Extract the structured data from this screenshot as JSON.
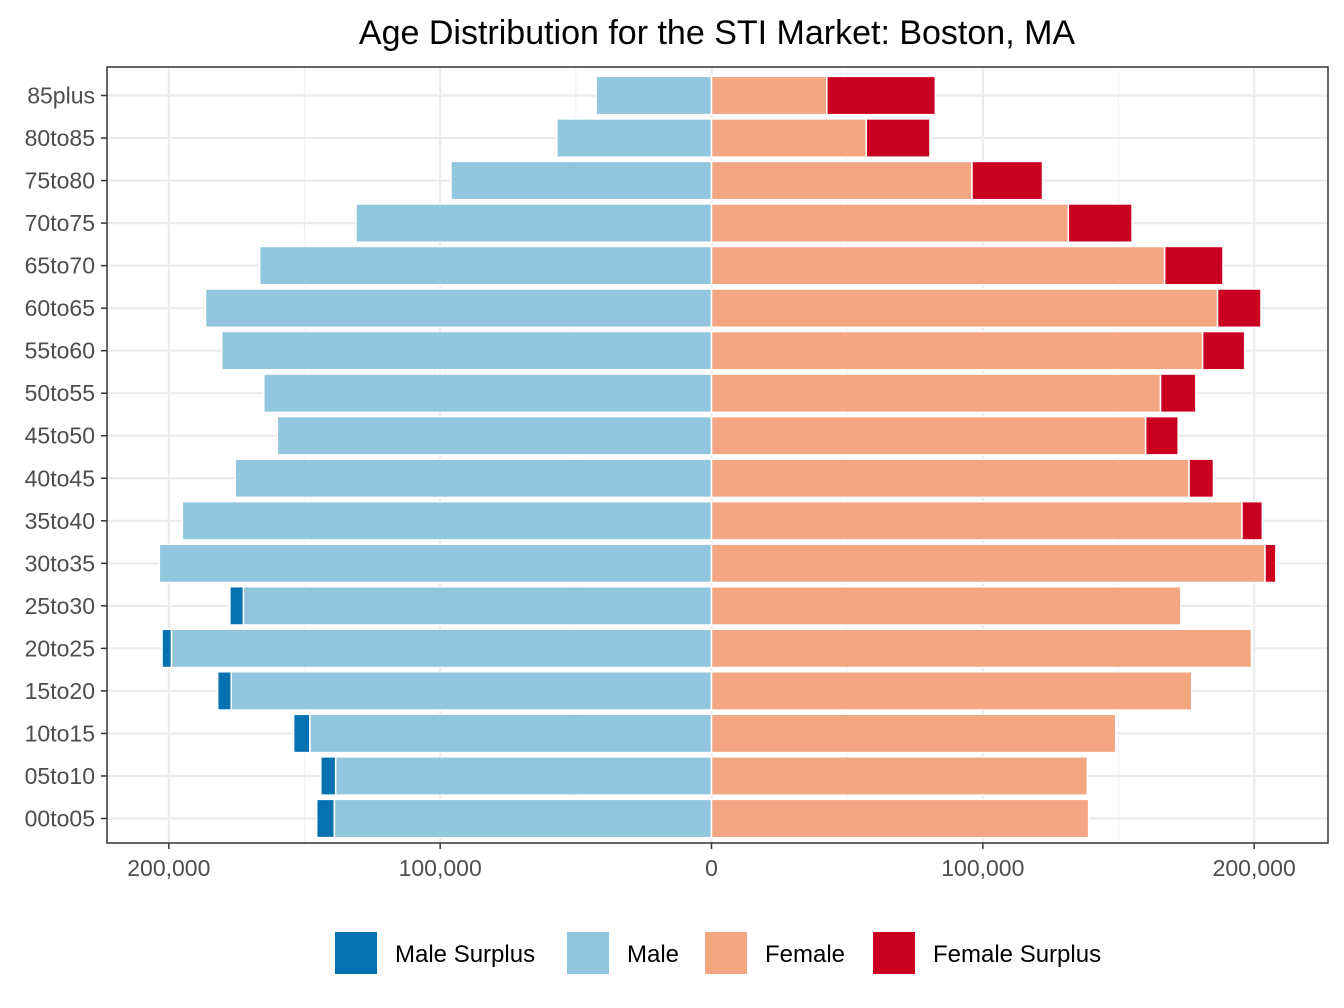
{
  "chart_data": {
    "type": "bar",
    "orientation": "horizontal",
    "layout": "population-pyramid",
    "title": "Age Distribution for the STI Market: Boston, MA",
    "xlabel": "",
    "ylabel": "",
    "xlim": [
      -225000,
      225000
    ],
    "x_ticks": [
      -200000,
      -100000,
      0,
      100000,
      200000
    ],
    "x_tick_labels": [
      "200,000",
      "100,000",
      "0",
      "100,000",
      "200,000"
    ],
    "grid": true,
    "legend_position": "bottom",
    "categories": [
      "00to05",
      "05to10",
      "10to15",
      "15to20",
      "20to25",
      "25to30",
      "30to35",
      "35to40",
      "40to45",
      "45to50",
      "50to55",
      "55to60",
      "60to65",
      "65to70",
      "70to75",
      "75to80",
      "80to85",
      "85plus"
    ],
    "series": [
      {
        "name": "Male Surplus",
        "color": "#0571b0",
        "side": "left",
        "stacked_after": "Male",
        "values": [
          6500,
          5500,
          6000,
          5000,
          3500,
          5000,
          0,
          0,
          0,
          0,
          0,
          0,
          0,
          0,
          0,
          0,
          0,
          0
        ]
      },
      {
        "name": "Male",
        "color": "#92c5de",
        "side": "left",
        "values": [
          139000,
          138500,
          148000,
          177000,
          199000,
          172500,
          203500,
          195000,
          175500,
          160000,
          165000,
          180500,
          186500,
          166500,
          131000,
          96000,
          57000,
          42500
        ]
      },
      {
        "name": "Female",
        "color": "#f4a582",
        "side": "right",
        "values": [
          139000,
          138500,
          149000,
          177000,
          199000,
          173000,
          204000,
          195500,
          176000,
          160000,
          165500,
          181000,
          186500,
          167000,
          131500,
          96000,
          57000,
          42500
        ]
      },
      {
        "name": "Female Surplus",
        "color": "#ca0020",
        "side": "right",
        "stacked_after": "Female",
        "values": [
          0,
          0,
          0,
          0,
          0,
          0,
          4000,
          7500,
          9000,
          12000,
          13000,
          15500,
          16000,
          21500,
          23500,
          26000,
          23500,
          40000
        ]
      }
    ]
  }
}
